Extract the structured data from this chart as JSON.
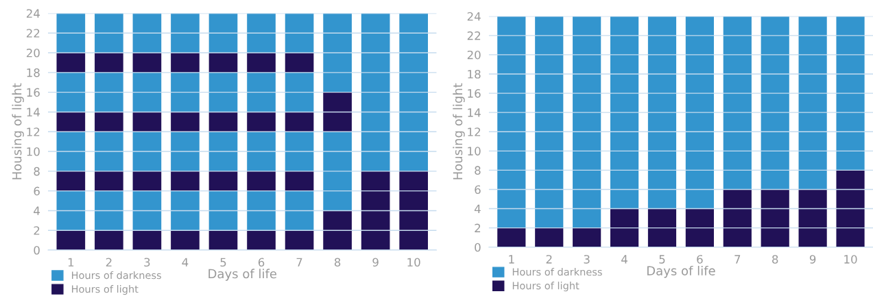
{
  "chart_data": [
    {
      "type": "bar",
      "stacked": true,
      "xlabel": "Days of life",
      "ylabel": "Housing of light",
      "categories": [
        "1",
        "2",
        "3",
        "4",
        "5",
        "6",
        "7",
        "8",
        "9",
        "10"
      ],
      "ylim": [
        0,
        24
      ],
      "yticks": [
        0,
        2,
        4,
        6,
        8,
        10,
        12,
        14,
        16,
        18,
        20,
        22,
        24
      ],
      "grid": "y",
      "legend": "bottom left",
      "series": [
        {
          "name": "Hours of light",
          "color": "#211157",
          "values": [
            2,
            2,
            2,
            2,
            2,
            2,
            2,
            4,
            8,
            8
          ]
        },
        {
          "name": "Hours of darkness",
          "color": "#3395ce",
          "values": [
            4,
            4,
            4,
            4,
            4,
            4,
            4,
            8,
            16,
            16
          ]
        },
        {
          "color": "#211157",
          "values": [
            2,
            2,
            2,
            2,
            2,
            2,
            2,
            4,
            null,
            null
          ]
        },
        {
          "color": "#3395ce",
          "values": [
            4,
            4,
            4,
            4,
            4,
            4,
            4,
            8,
            null,
            null
          ]
        },
        {
          "color": "#211157",
          "values": [
            2,
            2,
            2,
            2,
            2,
            2,
            2,
            null,
            null,
            null
          ]
        },
        {
          "color": "#3395ce",
          "values": [
            4,
            4,
            4,
            4,
            4,
            4,
            4,
            null,
            null,
            null
          ]
        },
        {
          "color": "#211157",
          "values": [
            2,
            2,
            2,
            2,
            2,
            2,
            2,
            null,
            null,
            null
          ]
        },
        {
          "color": "#3395ce",
          "values": [
            4,
            4,
            4,
            4,
            4,
            4,
            4,
            null,
            null,
            null
          ]
        }
      ]
    },
    {
      "type": "bar",
      "stacked": true,
      "xlabel": "Days of life",
      "ylabel": "Housing of light",
      "categories": [
        "1",
        "2",
        "3",
        "4",
        "5",
        "6",
        "7",
        "8",
        "9",
        "10"
      ],
      "ylim": [
        0,
        24
      ],
      "yticks": [
        0,
        2,
        4,
        6,
        8,
        10,
        12,
        14,
        16,
        18,
        20,
        22,
        24
      ],
      "grid": "y",
      "legend": "bottom left",
      "series": [
        {
          "name": "Hours of light",
          "color": "#211157",
          "values": [
            2,
            2,
            2,
            4,
            4,
            4,
            6,
            6,
            6,
            8
          ]
        },
        {
          "name": "Hours of darkness",
          "color": "#3395ce",
          "values": [
            22,
            22,
            22,
            20,
            20,
            20,
            18,
            18,
            18,
            16
          ]
        }
      ]
    }
  ]
}
